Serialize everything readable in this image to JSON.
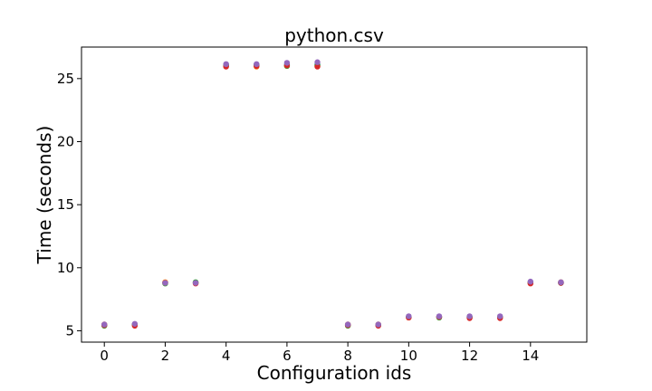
{
  "chart_data": {
    "type": "scatter",
    "title": "python.csv",
    "xlabel": "Configuration ids",
    "ylabel": "Time (seconds)",
    "xlim": [
      -0.75,
      15.85
    ],
    "ylim": [
      4.1,
      27.5
    ],
    "xticks": [
      0,
      2,
      4,
      6,
      8,
      10,
      12,
      14
    ],
    "yticks": [
      5,
      10,
      15,
      20,
      25
    ],
    "xtick_labels": [
      "0",
      "2",
      "4",
      "6",
      "8",
      "10",
      "12",
      "14"
    ],
    "ytick_labels": [
      "5",
      "10",
      "15",
      "20",
      "25"
    ],
    "grid": false,
    "legend": "none",
    "series": [
      {
        "color": "#1f77b4",
        "x": [
          0,
          1,
          2,
          3,
          4,
          5,
          6,
          7,
          8,
          9,
          10,
          11,
          12,
          13,
          14,
          15
        ],
        "y": [
          5.45,
          5.5,
          8.8,
          8.8,
          26.1,
          26.05,
          26.1,
          26.1,
          5.45,
          5.45,
          6.1,
          6.1,
          6.1,
          6.1,
          8.85,
          8.8
        ]
      },
      {
        "color": "#ff7f0e",
        "x": [
          0,
          1,
          2,
          3,
          4,
          5,
          6,
          7,
          8,
          9,
          10,
          11,
          12,
          13,
          14,
          15
        ],
        "y": [
          5.5,
          5.45,
          8.85,
          8.8,
          26.0,
          25.95,
          26.0,
          26.0,
          5.5,
          5.5,
          6.05,
          6.1,
          6.05,
          6.05,
          8.8,
          8.85
        ]
      },
      {
        "color": "#2ca02c",
        "x": [
          0,
          1,
          2,
          3,
          4,
          5,
          6,
          7,
          8,
          9,
          10,
          11,
          12,
          13,
          14,
          15
        ],
        "y": [
          5.4,
          5.5,
          8.75,
          8.85,
          26.05,
          26.1,
          26.0,
          26.05,
          5.4,
          5.45,
          6.1,
          6.05,
          6.1,
          6.1,
          8.8,
          8.8
        ]
      },
      {
        "color": "#d62728",
        "x": [
          0,
          1,
          2,
          3,
          4,
          5,
          6,
          7,
          8,
          9,
          10,
          11,
          12,
          13,
          14,
          15
        ],
        "y": [
          5.45,
          5.4,
          8.8,
          8.75,
          25.95,
          26.0,
          26.05,
          25.95,
          5.45,
          5.4,
          6.05,
          6.1,
          6.0,
          6.0,
          8.75,
          8.8
        ]
      },
      {
        "color": "#9467bd",
        "x": [
          0,
          1,
          2,
          3,
          4,
          5,
          6,
          7,
          8,
          9,
          10,
          11,
          12,
          13,
          14,
          15
        ],
        "y": [
          5.5,
          5.55,
          8.8,
          8.8,
          26.15,
          26.15,
          26.25,
          26.3,
          5.5,
          5.5,
          6.15,
          6.15,
          6.15,
          6.15,
          8.9,
          8.85
        ]
      }
    ]
  }
}
